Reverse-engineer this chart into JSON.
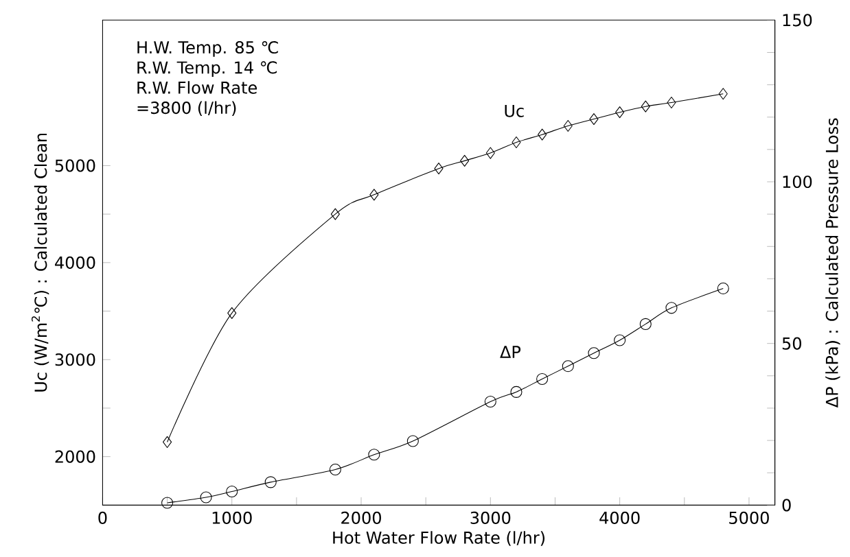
{
  "chart_data": {
    "type": "line",
    "xlabel": "Hot Water Flow Rate (l/hr)",
    "ylabel": "Uc (W/m$^{2}$℃) : Calculated Clean",
    "y2label": "ΔP (kPa) : Calculated Pressure Loss",
    "annotations": [
      "H.W. Temp. 85 ℃",
      "R.W. Temp. 14 ℃",
      "R.W. Flow Rate",
      "=3800 (l/hr)"
    ],
    "xlim": [
      0,
      5200
    ],
    "xticks": [
      0,
      {
        "value": 500,
        "label": null
      },
      1000,
      {
        "value": 1500,
        "label": null
      },
      2000,
      {
        "value": 2500,
        "label": null
      },
      3000,
      {
        "value": 3500,
        "label": null
      },
      4000,
      {
        "value": 4500,
        "label": null
      },
      5000
    ],
    "ylim": [
      1500,
      6500
    ],
    "yticks": [
      2000,
      {
        "value": 2500,
        "label": null
      },
      3000,
      {
        "value": 3500,
        "label": null
      },
      4000,
      {
        "value": 4500,
        "label": null
      },
      5000
    ],
    "y2lim": [
      0,
      150
    ],
    "y2ticks": [
      0,
      {
        "value": 10,
        "label": null
      },
      {
        "value": 20,
        "label": null
      },
      {
        "value": 30,
        "label": null
      },
      {
        "value": 40,
        "label": null
      },
      50,
      {
        "value": 60,
        "label": null
      },
      {
        "value": 70,
        "label": null
      },
      {
        "value": 80,
        "label": null
      },
      {
        "value": 90,
        "label": null
      },
      100,
      {
        "value": 110,
        "label": null
      },
      {
        "value": 120,
        "label": null
      },
      {
        "value": 130,
        "label": null
      },
      {
        "value": 140,
        "label": null
      },
      150
    ],
    "series": [
      {
        "name": "Uc",
        "color": "#000000",
        "marker": "diamond",
        "x": [
          500,
          1000,
          1800,
          2100,
          2600,
          2800,
          3000,
          3200,
          3400,
          3600,
          3800,
          4000,
          4200,
          4400,
          4800
        ],
        "values": [
          2150,
          3480,
          4500,
          4700,
          4970,
          5050,
          5130,
          5240,
          5320,
          5410,
          5480,
          5550,
          5610,
          5650,
          5740
        ]
      },
      {
        "name": "ΔP",
        "color": "#000000",
        "marker": "circle",
        "axis": "y2",
        "x": [
          500,
          800,
          1000,
          1300,
          1800,
          2100,
          2400,
          3000,
          3200,
          3400,
          3600,
          3800,
          4000,
          4200,
          4400,
          4800
        ],
        "values": [
          0.7,
          2.4,
          4.2,
          7.1,
          11,
          15.6,
          19.8,
          32,
          35,
          39,
          43,
          47,
          51,
          56,
          61,
          67
        ]
      }
    ]
  }
}
